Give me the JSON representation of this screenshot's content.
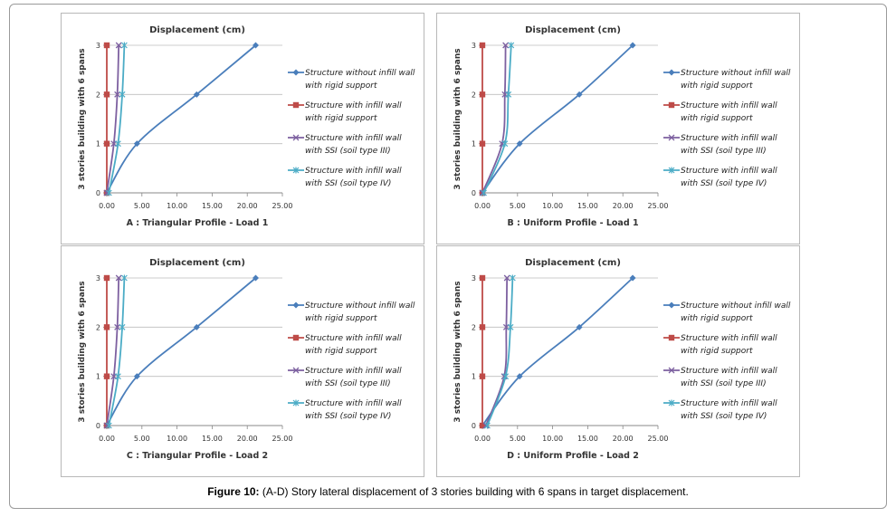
{
  "figure": {
    "caption_label": "Figure 10:",
    "caption_text": " (A-D) Story lateral displacement of 3 stories building with 6 spans in target displacement."
  },
  "legend": [
    {
      "line1": "Structure without infill wall",
      "line2": "with rigid support",
      "color": "#4a7ebb",
      "marker": "diamond"
    },
    {
      "line1": "Structure with infill wall",
      "line2": "with rigid support",
      "color": "#be4b48",
      "marker": "square"
    },
    {
      "line1": "Structure with infill wall",
      "line2": "with SSI (soil type III)",
      "color": "#7d60a0",
      "marker": "x"
    },
    {
      "line1": "Structure with infill wall",
      "line2": "with SSI (soil type IV)",
      "color": "#4bacc6",
      "marker": "star"
    }
  ],
  "chart_data": [
    {
      "type": "line",
      "title": "Displacement (cm)",
      "subtitle": "A : Triangular Profile - Load 1",
      "ylabel": "3 stories building with 6 spans",
      "xlim": [
        0,
        25
      ],
      "ylim": [
        0,
        3
      ],
      "x_ticks": [
        "0.00",
        "5.00",
        "10.00",
        "15.00",
        "20.00",
        "25.00"
      ],
      "y_ticks": [
        "0",
        "1",
        "2",
        "3"
      ],
      "grid": "horizontal",
      "legend_position": "right",
      "series": [
        {
          "name": "Structure without infill wall with rigid support",
          "x": [
            0,
            4.3,
            12.8,
            21.2
          ],
          "y": [
            0,
            1,
            2,
            3
          ]
        },
        {
          "name": "Structure with infill wall with rigid support",
          "x": [
            0,
            0,
            0,
            0
          ],
          "y": [
            0,
            1,
            2,
            3
          ]
        },
        {
          "name": "Structure with infill wall with SSI (soil type III)",
          "x": [
            0,
            1.0,
            1.5,
            1.7
          ],
          "y": [
            0,
            1,
            2,
            3
          ]
        },
        {
          "name": "Structure with infill wall with SSI (soil type IV)",
          "x": [
            0.3,
            1.6,
            2.2,
            2.5
          ],
          "y": [
            0,
            1,
            2,
            3
          ]
        }
      ]
    },
    {
      "type": "line",
      "title": "Displacement (cm)",
      "subtitle": "B : Uniform Profile - Load 1",
      "ylabel": "3 stories building with 6 spans",
      "xlim": [
        0,
        25
      ],
      "ylim": [
        0,
        3
      ],
      "x_ticks": [
        "0.00",
        "5.00",
        "10.00",
        "15.00",
        "20.00",
        "25.00"
      ],
      "y_ticks": [
        "0",
        "1",
        "2",
        "3"
      ],
      "grid": "horizontal",
      "legend_position": "right",
      "series": [
        {
          "name": "Structure without infill wall with rigid support",
          "x": [
            0,
            5.3,
            13.8,
            21.4
          ],
          "y": [
            0,
            1,
            2,
            3
          ]
        },
        {
          "name": "Structure with infill wall with rigid support",
          "x": [
            0,
            0,
            0,
            0
          ],
          "y": [
            0,
            1,
            2,
            3
          ]
        },
        {
          "name": "Structure with infill wall with SSI (soil type III)",
          "x": [
            0,
            2.8,
            3.2,
            3.3
          ],
          "y": [
            0,
            1,
            2,
            3
          ]
        },
        {
          "name": "Structure with infill wall with SSI (soil type IV)",
          "x": [
            0.2,
            3.2,
            3.7,
            4.1
          ],
          "y": [
            0,
            1,
            2,
            3
          ]
        }
      ]
    },
    {
      "type": "line",
      "title": "Displacement (cm)",
      "subtitle": "C : Triangular Profile - Load 2",
      "ylabel": "3 stories building with 6 spans",
      "xlim": [
        0,
        25
      ],
      "ylim": [
        0,
        3
      ],
      "x_ticks": [
        "0.00",
        "5.00",
        "10.00",
        "15.00",
        "20.00",
        "25.00"
      ],
      "y_ticks": [
        "0",
        "1",
        "2",
        "3"
      ],
      "grid": "horizontal",
      "legend_position": "right",
      "series": [
        {
          "name": "Structure without infill wall with rigid support",
          "x": [
            0,
            4.3,
            12.8,
            21.2
          ],
          "y": [
            0,
            1,
            2,
            3
          ]
        },
        {
          "name": "Structure with infill wall with rigid support",
          "x": [
            0,
            0,
            0,
            0
          ],
          "y": [
            0,
            1,
            2,
            3
          ]
        },
        {
          "name": "Structure with infill wall with SSI (soil type III)",
          "x": [
            0,
            1.0,
            1.5,
            1.7
          ],
          "y": [
            0,
            1,
            2,
            3
          ]
        },
        {
          "name": "Structure with infill wall with SSI (soil type IV)",
          "x": [
            0.3,
            1.6,
            2.2,
            2.5
          ],
          "y": [
            0,
            1,
            2,
            3
          ]
        }
      ]
    },
    {
      "type": "line",
      "title": "Displacement (cm)",
      "subtitle": "D : Uniform Profile - Load 2",
      "ylabel": "3 stories building with 6 spans",
      "xlim": [
        0,
        25
      ],
      "ylim": [
        0,
        3
      ],
      "x_ticks": [
        "0.00",
        "5.00",
        "10.00",
        "15.00",
        "20.00",
        "25.00"
      ],
      "y_ticks": [
        "0",
        "1",
        "2",
        "3"
      ],
      "grid": "horizontal",
      "legend_position": "right",
      "series": [
        {
          "name": "Structure without infill wall with rigid support",
          "x": [
            0,
            5.3,
            13.8,
            21.4
          ],
          "y": [
            0,
            1,
            2,
            3
          ]
        },
        {
          "name": "Structure with infill wall with rigid support",
          "x": [
            0,
            0,
            0,
            0
          ],
          "y": [
            0,
            1,
            2,
            3
          ]
        },
        {
          "name": "Structure with infill wall with SSI (soil type III)",
          "x": [
            0.5,
            3.1,
            3.4,
            3.5
          ],
          "y": [
            0,
            1,
            2,
            3
          ]
        },
        {
          "name": "Structure with infill wall with SSI (soil type IV)",
          "x": [
            0.7,
            3.3,
            4.0,
            4.3
          ],
          "y": [
            0,
            1,
            2,
            3
          ]
        }
      ]
    }
  ]
}
